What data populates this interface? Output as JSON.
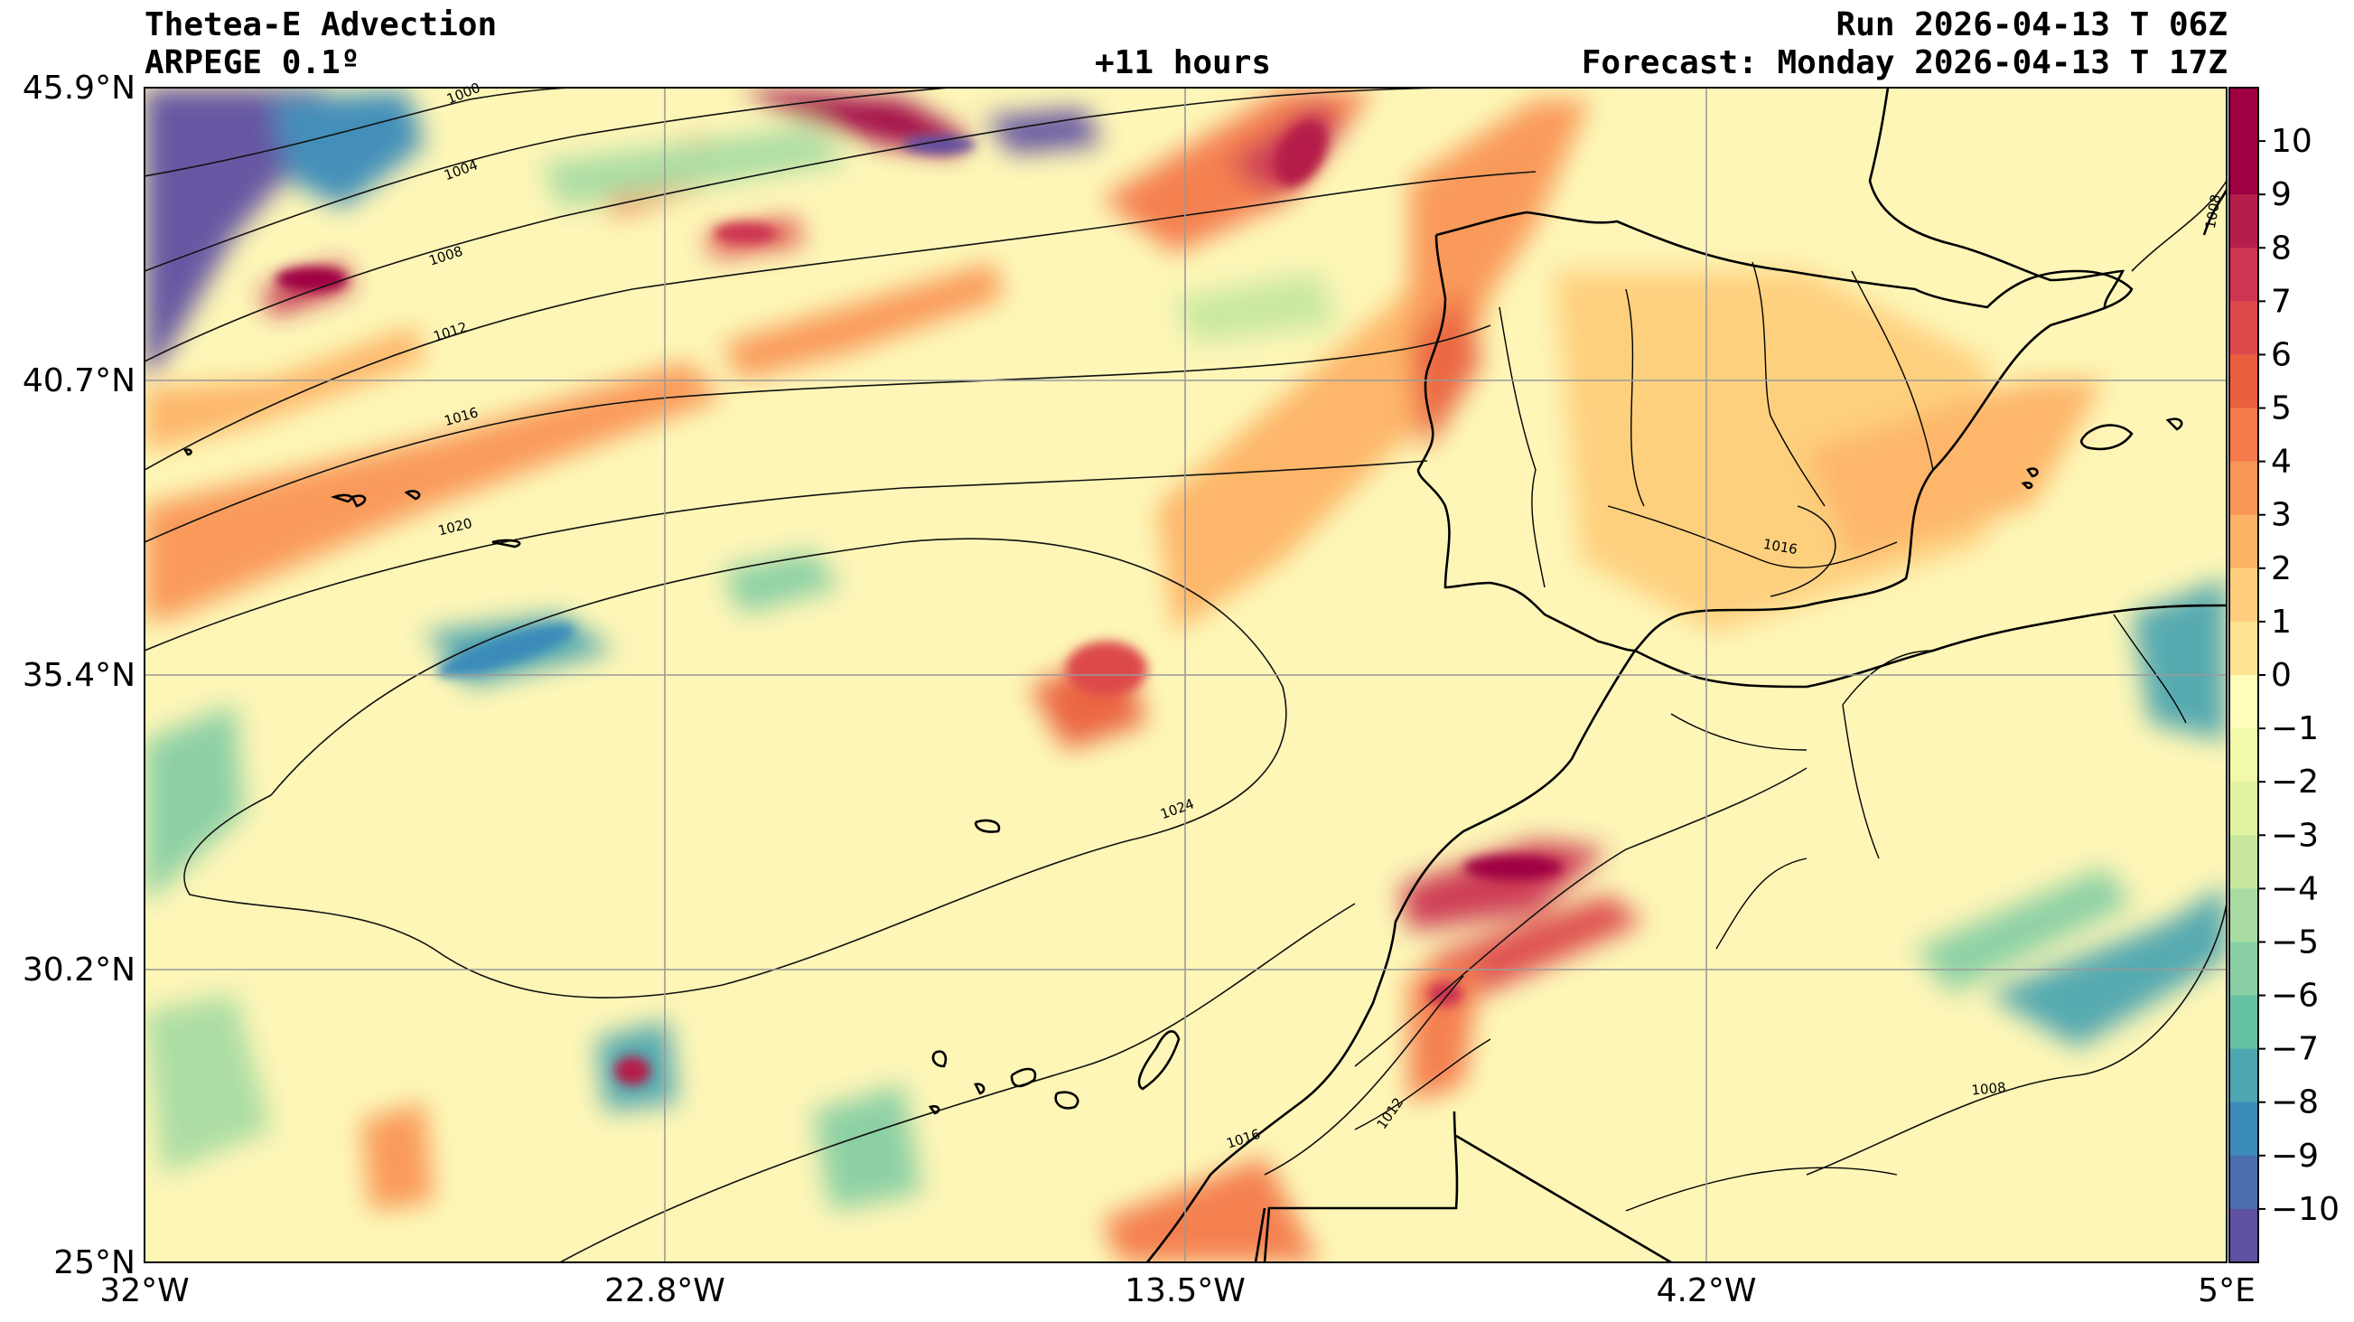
{
  "header": {
    "title": "Thetea-E Advection",
    "model": "ARPEGE 0.1º",
    "lead": "+11 hours",
    "run": "Run 2026-04-13 T 06Z",
    "forecast": "Forecast: Monday 2026-04-13 T 17Z"
  },
  "axes": {
    "lat_labels": [
      "45.9°N",
      "40.7°N",
      "35.4°N",
      "30.2°N",
      "25°N"
    ],
    "lon_labels": [
      "32°W",
      "22.8°W",
      "13.5°W",
      "4.2°W",
      "5°E"
    ]
  },
  "colorbar": {
    "ticks": [
      "10",
      "9",
      "8",
      "7",
      "6",
      "5",
      "4",
      "3",
      "2",
      "1",
      "0",
      "−1",
      "−2",
      "−3",
      "−4",
      "−5",
      "−6",
      "−7",
      "−8",
      "−9",
      "−10"
    ],
    "colors": [
      "#9e0142",
      "#b51e4a",
      "#cc3651",
      "#dd4a4c",
      "#ea603e",
      "#f47a4b",
      "#f99656",
      "#fdb366",
      "#fece7c",
      "#fee491",
      "#fffdbc",
      "#f2faaa",
      "#e0f3a1",
      "#c7e89e",
      "#a8dca3",
      "#88cfa4",
      "#66c2a5",
      "#4da6b0",
      "#3a8aba",
      "#4c6eb0",
      "#5e50a2"
    ]
  },
  "isobars": {
    "labels": [
      "1000",
      "1004",
      "1008",
      "1012",
      "1016",
      "1020",
      "1024",
      "1016",
      "1012",
      "1016",
      "1008",
      "1008"
    ]
  }
}
